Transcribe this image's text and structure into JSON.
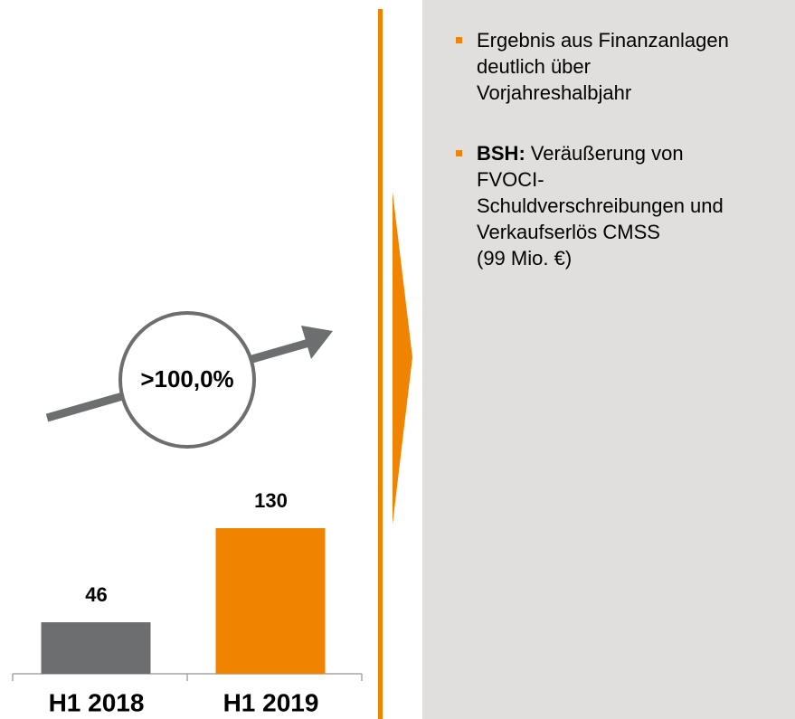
{
  "chart_data": {
    "type": "bar",
    "categories": [
      "H1 2018",
      "H1 2019"
    ],
    "values": [
      46,
      130
    ],
    "colors": [
      "#6d6e70",
      "#f08300"
    ],
    "annotation": ">100,0%"
  },
  "notes": [
    {
      "lines": [
        "Ergebnis aus Finanzanlagen",
        "deutlich über",
        "Vorjahreshalbjahr"
      ]
    },
    {
      "label": "BSH:",
      "lines": [
        "Veräußerung von",
        "FVOCI-",
        "Schuldverschreibungen und",
        "Verkaufserlös CMSS",
        "(99 Mio. €)"
      ]
    }
  ]
}
